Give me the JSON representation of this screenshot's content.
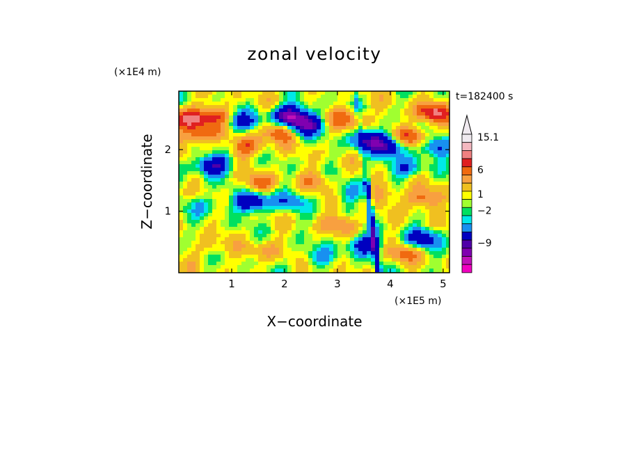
{
  "chart_data": {
    "type": "heatmap",
    "title": "zonal velocity",
    "xlabel": "X−coordinate",
    "ylabel": "Z−coordinate",
    "x_scale_label": "(×1E5 m)",
    "y_scale_label": "(×1E4 m)",
    "time_label": "t=182400 s",
    "xlim": [
      0,
      5.12
    ],
    "ylim": [
      0,
      2.95
    ],
    "x_ticks": [
      {
        "value": 1,
        "label": "1"
      },
      {
        "value": 2,
        "label": "2"
      },
      {
        "value": 3,
        "label": "3"
      },
      {
        "value": 4,
        "label": "4"
      },
      {
        "value": 5,
        "label": "5"
      }
    ],
    "y_ticks": [
      {
        "value": 1,
        "label": "1"
      },
      {
        "value": 2,
        "label": "2"
      }
    ],
    "colorbar": {
      "bins": [
        {
          "color": "#f0eaf0"
        },
        {
          "color": "#f4b8c0"
        },
        {
          "color": "#f08080"
        },
        {
          "color": "#e02020"
        },
        {
          "color": "#f06a10"
        },
        {
          "color": "#f8a040"
        },
        {
          "color": "#f0c020"
        },
        {
          "color": "#ffff00"
        },
        {
          "color": "#a0ff30"
        },
        {
          "color": "#00e060"
        },
        {
          "color": "#00e8e8"
        },
        {
          "color": "#1890f0"
        },
        {
          "color": "#0000c0"
        },
        {
          "color": "#5000a8"
        },
        {
          "color": "#8000b0"
        },
        {
          "color": "#c010b8"
        },
        {
          "color": "#f000c0"
        }
      ],
      "labels": [
        "15.1",
        "6",
        "1",
        "−2",
        "−9"
      ]
    },
    "features": [
      {
        "x": 0.2,
        "z": 2.5,
        "value": 8
      },
      {
        "x": 0.4,
        "z": 2.25,
        "value": 6
      },
      {
        "x": 0.7,
        "z": 2.55,
        "value": 5
      },
      {
        "x": 0.65,
        "z": 1.75,
        "value": -9
      },
      {
        "x": 1.2,
        "z": 2.45,
        "value": -6
      },
      {
        "x": 1.3,
        "z": 2.05,
        "value": 5
      },
      {
        "x": 1.9,
        "z": 2.3,
        "value": 6
      },
      {
        "x": 1.5,
        "z": 1.45,
        "value": 4
      },
      {
        "x": 2.1,
        "z": 2.55,
        "value": -12
      },
      {
        "x": 2.4,
        "z": 2.4,
        "value": -10
      },
      {
        "x": 1.4,
        "z": 1.15,
        "value": -9
      },
      {
        "x": 0.5,
        "z": 1.1,
        "value": -3
      },
      {
        "x": 2.1,
        "z": 1.15,
        "value": -4
      },
      {
        "x": 2.6,
        "z": 1.5,
        "value": 3
      },
      {
        "x": 0.6,
        "z": 0.4,
        "value": 2
      },
      {
        "x": 1.6,
        "z": 0.35,
        "value": 2.5
      },
      {
        "x": 2.6,
        "z": 0.25,
        "value": -3
      },
      {
        "x": 3.2,
        "z": 2.5,
        "value": 5
      },
      {
        "x": 3.6,
        "z": 2.15,
        "value": -9
      },
      {
        "x": 4.0,
        "z": 2.05,
        "value": -8
      },
      {
        "x": 4.4,
        "z": 2.2,
        "value": 6
      },
      {
        "x": 4.8,
        "z": 2.6,
        "value": 8
      },
      {
        "x": 4.9,
        "z": 2.05,
        "value": -6
      },
      {
        "x": 4.3,
        "z": 1.7,
        "value": -5
      },
      {
        "x": 4.6,
        "z": 1.2,
        "value": 5
      },
      {
        "x": 3.9,
        "z": 1.3,
        "value": 3
      },
      {
        "x": 3.3,
        "z": 1.3,
        "value": -3
      },
      {
        "x": 3.5,
        "z": 0.45,
        "value": -8
      },
      {
        "x": 4.6,
        "z": 0.55,
        "value": -7
      },
      {
        "x": 3.1,
        "z": 0.8,
        "value": 4
      },
      {
        "x": 4.2,
        "z": 0.3,
        "value": 4
      }
    ]
  }
}
